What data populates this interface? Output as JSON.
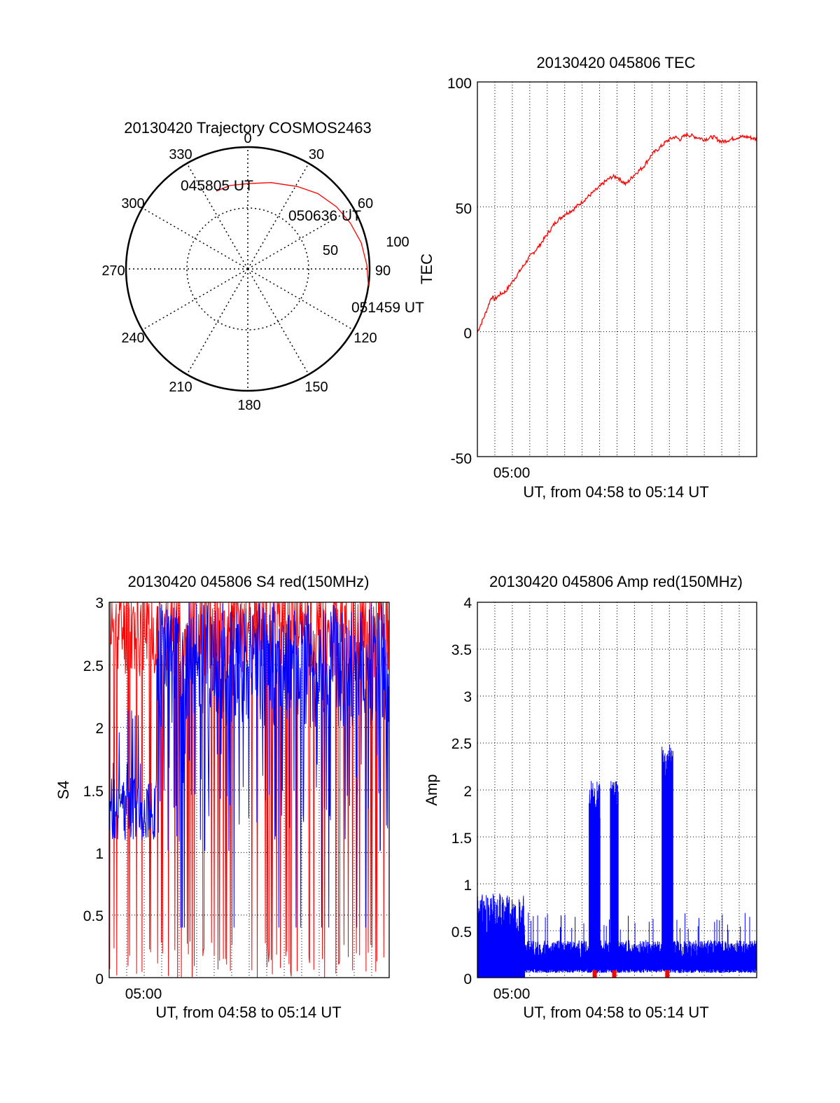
{
  "colors": {
    "red": "#ff0000",
    "blue": "#0000ff",
    "axis": "#000000"
  },
  "chart_data": [
    {
      "type": "polar",
      "title": "20130420 Trajectory COSMOS2463",
      "azimuth_labels": [
        "0",
        "30",
        "60",
        "90",
        "120",
        "150",
        "180",
        "210",
        "240",
        "270",
        "300",
        "330"
      ],
      "radial_labels": [
        "50",
        "100"
      ],
      "time_labels": [
        "045805 UT",
        "050636 UT",
        "051459 UT"
      ],
      "trajectory": [
        {
          "az": 338,
          "el": 28
        },
        {
          "az": 348,
          "el": 27
        },
        {
          "az": 0,
          "el": 27
        },
        {
          "az": 15,
          "el": 24
        },
        {
          "az": 31,
          "el": 19
        },
        {
          "az": 43,
          "el": 14
        },
        {
          "az": 55,
          "el": 10
        },
        {
          "az": 66,
          "el": 7
        },
        {
          "az": 77,
          "el": 4
        },
        {
          "az": 88,
          "el": 2
        },
        {
          "az": 98,
          "el": 0
        }
      ]
    },
    {
      "type": "line",
      "title": "20130420 045806 TEC",
      "ylabel": "TEC",
      "xlabel": "UT, from 04:58 to 05:14 UT",
      "xtick_label": "05:00",
      "ylim": [
        -50,
        100
      ],
      "yticks": [
        "100",
        "50",
        "0",
        "-50"
      ],
      "series": [
        {
          "color": "red",
          "x": [
            0,
            0.2,
            0.5,
            0.8,
            1.0,
            1.3,
            1.6,
            2.0,
            2.5,
            3.0,
            3.5,
            4.0,
            4.5,
            5.0,
            5.5,
            6.0,
            6.5,
            7.0,
            7.3,
            7.7,
            8.0,
            8.5,
            9.0,
            9.5,
            10.0,
            10.5,
            10.8,
            11.0,
            11.3,
            11.6,
            12.0,
            12.5,
            13.0,
            13.5,
            14.0,
            14.5,
            15.0,
            15.5,
            16.0
          ],
          "y": [
            0,
            3,
            8,
            14,
            13,
            15,
            16,
            20,
            25,
            30,
            34,
            39,
            44,
            47,
            49,
            52,
            55,
            58,
            60,
            62,
            62,
            59,
            63,
            66,
            71,
            74,
            76,
            77,
            78,
            77,
            79,
            78,
            77,
            78,
            76,
            77,
            78,
            78,
            77
          ]
        }
      ]
    },
    {
      "type": "line",
      "title": "20130420 045806 S4 red(150MHz)",
      "ylabel": "S4",
      "xlabel": "UT, from 04:58 to 05:14 UT",
      "xtick_label": "05:00",
      "ylim": [
        0,
        3
      ],
      "yticks": [
        "3",
        "2.5",
        "2",
        "1.5",
        "1",
        "0.5",
        "0"
      ],
      "series": [
        {
          "color": "red",
          "description": "noisy S4 values 0-3"
        },
        {
          "color": "blue",
          "description": "noisy S4 values, baseline ~1.2 early, mostly 2-3 later"
        }
      ]
    },
    {
      "type": "line",
      "title": "20130420 045806 Amp red(150MHz)",
      "ylabel": "Amp",
      "xlabel": "UT, from 04:58 to 05:14 UT",
      "xtick_label": "05:00",
      "ylim": [
        0,
        4
      ],
      "yticks": [
        "4",
        "3.5",
        "3",
        "2.5",
        "2",
        "1.5",
        "1",
        "0.5",
        "0"
      ],
      "series": [
        {
          "color": "blue",
          "description": "dense amplitude noise ~0.3-0.9 with spikes to ~2.1, 2.1 and 2.5"
        },
        {
          "color": "red",
          "description": "small red spikes near peaks"
        }
      ]
    }
  ]
}
